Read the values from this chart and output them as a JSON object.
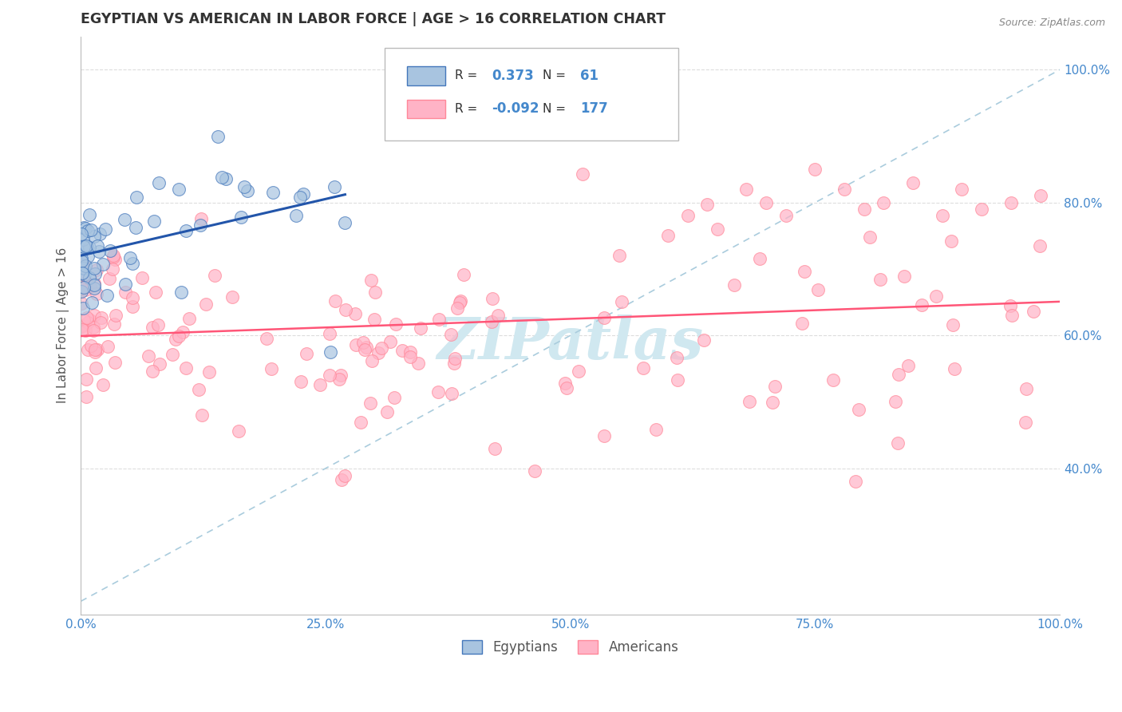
{
  "title": "EGYPTIAN VS AMERICAN IN LABOR FORCE | AGE > 16 CORRELATION CHART",
  "source_text": "Source: ZipAtlas.com",
  "ylabel": "In Labor Force | Age > 16",
  "xlim": [
    0.0,
    1.0
  ],
  "ylim": [
    0.18,
    1.05
  ],
  "xticks": [
    0.0,
    0.25,
    0.5,
    0.75,
    1.0
  ],
  "xticklabels": [
    "0.0%",
    "25.0%",
    "50.0%",
    "75.0%",
    "100.0%"
  ],
  "ytick_positions": [
    0.4,
    0.6,
    0.8,
    1.0
  ],
  "yticklabels": [
    "40.0%",
    "60.0%",
    "80.0%",
    "100.0%"
  ],
  "legend_r_blue": "0.373",
  "legend_n_blue": "61",
  "legend_r_pink": "-0.092",
  "legend_n_pink": "177",
  "legend_label_blue": "Egyptians",
  "legend_label_pink": "Americans",
  "blue_scatter_color": "#A8C4E0",
  "pink_scatter_color": "#FFB3C6",
  "blue_line_color": "#2255AA",
  "pink_line_color": "#FF5577",
  "blue_edge_color": "#4477BB",
  "pink_edge_color": "#FF8899",
  "dash_line_color": "#AACCDD",
  "background_color": "#FFFFFF",
  "grid_color": "#DDDDDD",
  "tick_color": "#4488CC",
  "title_color": "#333333",
  "watermark_color": "#D0E8F0",
  "watermark_text": "ZIPatlas"
}
